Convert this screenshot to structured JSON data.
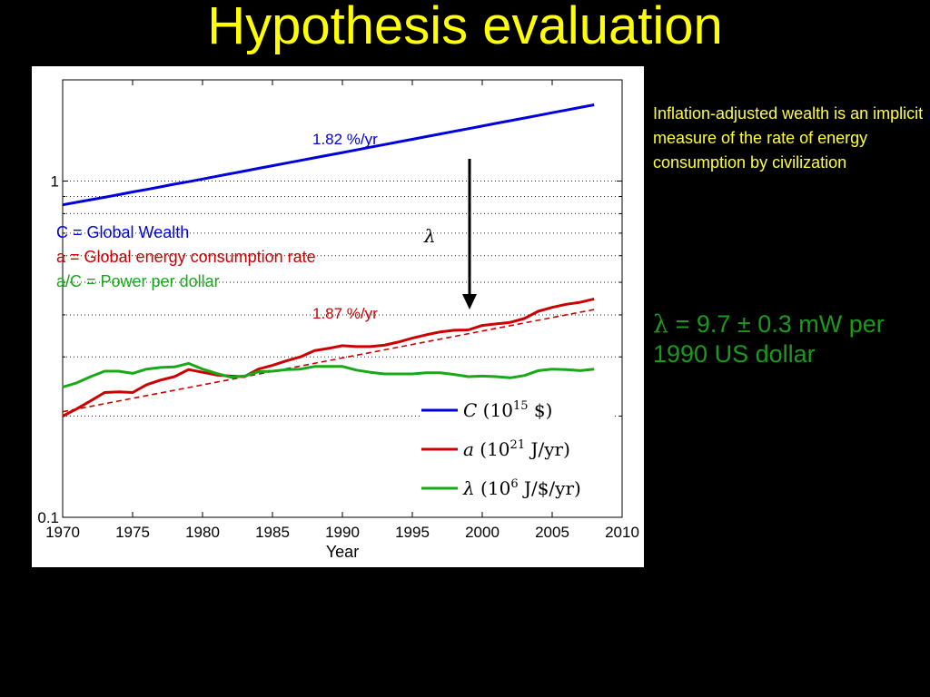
{
  "slide": {
    "title": "Hypothesis evaluation",
    "note": "Inflation-adjusted wealth is an implicit measure of the rate of energy consumption by civilization",
    "result_symbol": "λ",
    "result_text": " = 9.7 ± 0.3 mW per 1990 US dollar",
    "colors": {
      "title": "#ffff00",
      "note": "#ffff33",
      "result": "#1a9a1a",
      "background": "#000000"
    }
  },
  "chart_data": {
    "type": "line",
    "xlabel": "Year",
    "x_ticks": [
      "1970",
      "1975",
      "1980",
      "1985",
      "1990",
      "1995",
      "2000",
      "2005",
      "2010"
    ],
    "y_ticks": [
      "0.1",
      "1"
    ],
    "xlim": [
      1970,
      2010
    ],
    "ylim": [
      0.1,
      2
    ],
    "y_scale": "log",
    "grid": "horizontal dotted",
    "x": [
      1970,
      1971,
      1972,
      1973,
      1974,
      1975,
      1976,
      1977,
      1978,
      1979,
      1980,
      1981,
      1982,
      1983,
      1984,
      1985,
      1986,
      1987,
      1988,
      1989,
      1990,
      1991,
      1992,
      1993,
      1994,
      1995,
      1996,
      1997,
      1998,
      1999,
      2000,
      2001,
      2002,
      2003,
      2004,
      2005,
      2006,
      2007,
      2008
    ],
    "series": [
      {
        "name": "C (10^15 $)",
        "color": "#0000dd",
        "values": [
          0.85,
          0.865,
          0.88,
          0.895,
          0.911,
          0.928,
          0.944,
          0.961,
          0.979,
          0.996,
          1.014,
          1.033,
          1.052,
          1.071,
          1.091,
          1.111,
          1.131,
          1.152,
          1.173,
          1.194,
          1.216,
          1.238,
          1.261,
          1.284,
          1.307,
          1.331,
          1.356,
          1.381,
          1.406,
          1.432,
          1.458,
          1.485,
          1.512,
          1.54,
          1.568,
          1.597,
          1.626,
          1.656,
          1.686
        ]
      },
      {
        "name": "a (10^21 J/yr)",
        "color": "#cc0000",
        "values": [
          0.2,
          0.21,
          0.222,
          0.235,
          0.236,
          0.235,
          0.248,
          0.256,
          0.262,
          0.275,
          0.27,
          0.265,
          0.263,
          0.262,
          0.276,
          0.283,
          0.292,
          0.3,
          0.313,
          0.318,
          0.324,
          0.322,
          0.322,
          0.325,
          0.332,
          0.341,
          0.349,
          0.356,
          0.36,
          0.361,
          0.372,
          0.376,
          0.38,
          0.39,
          0.41,
          0.421,
          0.43,
          0.436,
          0.446
        ]
      },
      {
        "name": "λ (10^6 J/$/yr)",
        "color": "#18a818",
        "values": [
          0.244,
          0.251,
          0.262,
          0.272,
          0.272,
          0.268,
          0.276,
          0.279,
          0.28,
          0.287,
          0.276,
          0.268,
          0.261,
          0.263,
          0.271,
          0.272,
          0.275,
          0.276,
          0.281,
          0.281,
          0.281,
          0.274,
          0.27,
          0.267,
          0.267,
          0.267,
          0.269,
          0.269,
          0.266,
          0.262,
          0.263,
          0.262,
          0.26,
          0.264,
          0.273,
          0.276,
          0.275,
          0.273,
          0.276
        ]
      }
    ],
    "fit_line": {
      "color": "#cc0000",
      "style": "dashed",
      "x": [
        1970,
        2008
      ],
      "y": [
        0.206,
        0.415
      ]
    },
    "legend": {
      "placement": "lower-right",
      "entries": [
        {
          "symbol": "C",
          "text": "(10",
          "sup": "15",
          "tail": " $)",
          "color": "#0000dd"
        },
        {
          "symbol": "a",
          "text": "(10",
          "sup": "21",
          "tail": " J/yr)",
          "color": "#cc0000"
        },
        {
          "symbol": "λ",
          "text": "(10",
          "sup": "6",
          "tail": " J/$/yr)",
          "color": "#18a818"
        }
      ]
    },
    "annotations": {
      "rate_c": "1.82 %/yr",
      "rate_a": "1.87 %/yr",
      "arrow_label": "λ",
      "desc_c": "C = Global Wealth",
      "desc_a": "a = Global energy consumption rate",
      "desc_l": "a/C = Power per dollar",
      "colors": {
        "c": "#0000dd",
        "a": "#cc0000",
        "l": "#18a818"
      }
    }
  }
}
